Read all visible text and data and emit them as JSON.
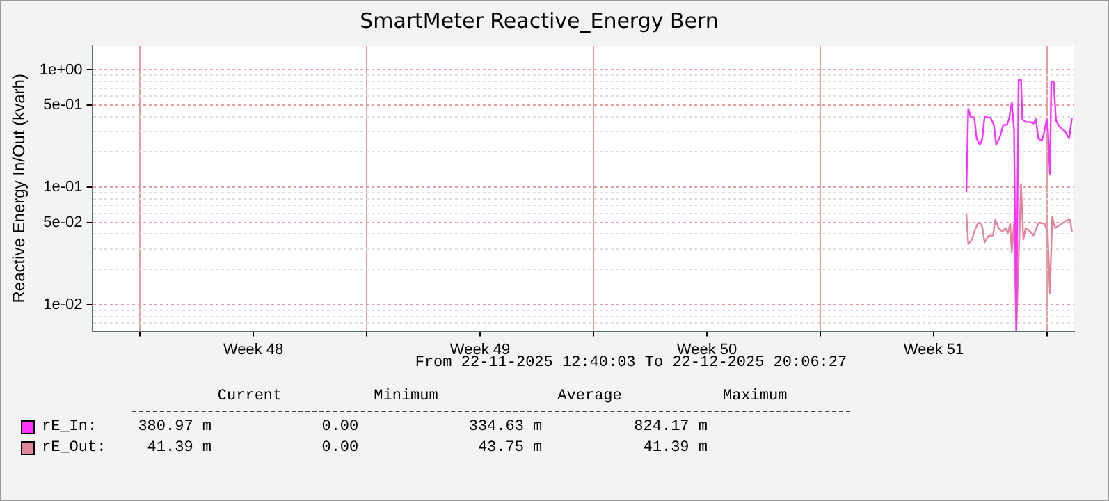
{
  "chart_data": {
    "type": "line",
    "title": "SmartMeter Reactive_Energy Bern",
    "ylabel": "Reactive Energy In/Out (kvarh)",
    "annotations": [
      "From 22-11-2025 12:40:03 To 22-12-2025 20:06:27",
      "       Current          Minimum             Average           Maximum",
      "  380.97 m            0.00            334.63 m          824.17 m",
      "   41.39 m            0.00             43.75 m           41.39 m"
    ],
    "log": "y",
    "grid": true,
    "legend": "bottom",
    "marker": "none",
    "line_style": "solid",
    "xlim": [
      "2025-11-22T12:40",
      "2025-12-22T20:06"
    ],
    "xticks": [
      {
        "value": "2025-11-24",
        "label": null
      },
      {
        "value": "2025-11-27T12:00",
        "label": "Week 48"
      },
      {
        "value": "2025-12-01",
        "label": null
      },
      {
        "value": "2025-12-04T12:00",
        "label": "Week 49"
      },
      {
        "value": "2025-12-08",
        "label": null
      },
      {
        "value": "2025-12-11T12:00",
        "label": "Week 50"
      },
      {
        "value": "2025-12-15",
        "label": null
      },
      {
        "value": "2025-12-18T12:00",
        "label": "Week 51"
      },
      {
        "value": "2025-12-22",
        "label": null
      }
    ],
    "ylim": [
      0.006,
      1.6
    ],
    "yticks": [
      {
        "value": 0.007,
        "label": null
      },
      {
        "value": 0.008,
        "label": null
      },
      {
        "value": 0.009,
        "label": null
      },
      {
        "value": 0.01,
        "label": "1e-02"
      },
      {
        "value": 0.02,
        "label": null
      },
      {
        "value": 0.03,
        "label": null
      },
      {
        "value": 0.04,
        "label": null
      },
      {
        "value": 0.05,
        "label": "5e-02"
      },
      {
        "value": 0.06,
        "label": null
      },
      {
        "value": 0.07,
        "label": null
      },
      {
        "value": 0.08,
        "label": null
      },
      {
        "value": 0.09,
        "label": null
      },
      {
        "value": 0.1,
        "label": "1e-01"
      },
      {
        "value": 0.2,
        "label": null
      },
      {
        "value": 0.3,
        "label": null
      },
      {
        "value": 0.4,
        "label": null
      },
      {
        "value": 0.5,
        "label": "5e-01"
      },
      {
        "value": 0.6,
        "label": null
      },
      {
        "value": 0.7,
        "label": null
      },
      {
        "value": 0.8,
        "label": null
      },
      {
        "value": 0.9,
        "label": null
      },
      {
        "value": 1,
        "label": "1e+00"
      }
    ],
    "series": [
      {
        "name": "rE_In:",
        "color": "#ff33ff",
        "x": [
          "2025-12-19T12:12",
          "2025-12-19T13:36",
          "2025-12-19T15:18",
          "2025-12-19T18:06",
          "2025-12-19T19:48",
          "2025-12-19T22:12",
          "2025-12-20T00:00",
          "2025-12-20T01:42",
          "2025-12-20T06:12",
          "2025-12-20T08:36",
          "2025-12-20T10:18",
          "2025-12-20T13:06",
          "2025-12-20T15:30",
          "2025-12-20T18:18",
          "2025-12-20T20:00",
          "2025-12-20T21:48",
          "2025-12-20T23:30",
          "2025-12-21T01:12",
          "2025-12-21T02:54",
          "2025-12-21T04:42",
          "2025-12-21T05:42",
          "2025-12-21T08:06",
          "2025-12-21T11:36",
          "2025-12-21T14:00",
          "2025-12-21T15:42",
          "2025-12-21T17:30",
          "2025-12-21T20:12",
          "2025-12-21T22:00",
          "2025-12-21T23:42",
          "2025-12-22T00:42",
          "2025-12-22T02:06",
          "2025-12-22T03:06",
          "2025-12-22T04:54",
          "2025-12-22T06:36",
          "2025-12-22T09:00",
          "2025-12-22T11:48",
          "2025-12-22T13:30",
          "2025-12-22T16:18",
          "2025-12-22T18:24"
        ],
        "values": [
          0.091,
          0.47,
          0.4,
          0.39,
          0.26,
          0.23,
          0.26,
          0.4,
          0.39,
          0.34,
          0.23,
          0.27,
          0.34,
          0.34,
          0.39,
          0.53,
          0.31,
          0.006,
          0.82,
          0.82,
          0.38,
          0.36,
          0.36,
          0.35,
          0.38,
          0.26,
          0.25,
          0.3,
          0.38,
          0.3,
          0.13,
          0.79,
          0.79,
          0.37,
          0.33,
          0.31,
          0.3,
          0.26,
          0.39
        ]
      },
      {
        "name": "rE_Out:",
        "color": "#e0859a",
        "x": [
          "2025-12-19T12:12",
          "2025-12-19T13:36",
          "2025-12-19T16:24",
          "2025-12-19T18:06",
          "2025-12-19T20:30",
          "2025-12-19T22:12",
          "2025-12-20T00:00",
          "2025-12-20T01:42",
          "2025-12-20T04:30",
          "2025-12-20T07:54",
          "2025-12-20T09:42",
          "2025-12-20T12:06",
          "2025-12-20T14:48",
          "2025-12-20T17:18",
          "2025-12-20T19:00",
          "2025-12-20T20:42",
          "2025-12-20T21:48",
          "2025-12-20T23:30",
          "2025-12-21T01:12",
          "2025-12-21T04:42",
          "2025-12-21T06:24",
          "2025-12-21T08:06",
          "2025-12-21T11:36",
          "2025-12-21T14:00",
          "2025-12-21T15:42",
          "2025-12-21T17:48",
          "2025-12-21T22:00",
          "2025-12-22T00:24",
          "2025-12-22T02:06",
          "2025-12-22T03:48",
          "2025-12-22T05:54",
          "2025-12-22T08:18",
          "2025-12-22T11:48",
          "2025-12-22T15:12",
          "2025-12-22T17:00",
          "2025-12-22T18:24"
        ],
        "values": [
          0.06,
          0.033,
          0.036,
          0.042,
          0.049,
          0.05,
          0.046,
          0.034,
          0.0385,
          0.039,
          0.053,
          0.045,
          0.042,
          0.045,
          0.041,
          0.049,
          0.028,
          0.049,
          0.006,
          0.107,
          0.036,
          0.045,
          0.042,
          0.039,
          0.044,
          0.05,
          0.049,
          0.042,
          0.0126,
          0.056,
          0.045,
          0.047,
          0.05,
          0.053,
          0.053,
          0.042
        ]
      }
    ]
  }
}
